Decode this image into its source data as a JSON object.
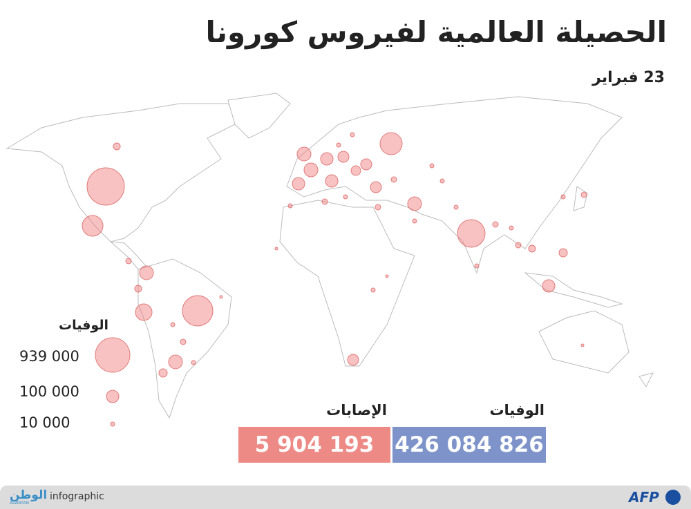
{
  "header": {
    "title": "الحصيلة العالمية لفيروس كورونا",
    "date": "23 فبراير"
  },
  "legend": {
    "title": "الوفيات",
    "items": [
      "939 000",
      "100 000",
      "10 000"
    ]
  },
  "totals": [
    {
      "label": "الوفيات",
      "value": "426 084 826"
    },
    {
      "label": "الإصابات",
      "value": "5 904 193"
    }
  ],
  "footer": {
    "brand": "الوطن",
    "brand_sub": "ALWATAN",
    "tag": "infographic",
    "source": "AFP"
  }
}
